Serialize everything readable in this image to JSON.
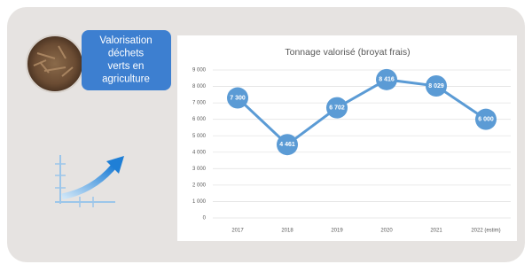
{
  "panel": {
    "label_lines": [
      "Valorisation",
      "déchets",
      "verts en",
      "agriculture"
    ]
  },
  "chart_data": {
    "type": "line",
    "title": "Tonnage valorisé (broyat frais)",
    "categories": [
      "2017",
      "2018",
      "2019",
      "2020",
      "2021",
      "2022 (estim)"
    ],
    "series": [
      {
        "color": "#5b9bd5",
        "values": [
          7300,
          4461,
          6702,
          8416,
          8029,
          6000
        ],
        "value_labels": [
          "7 300",
          "4 461",
          "6 702",
          "8 416",
          "8 029",
          "6 000"
        ]
      }
    ],
    "ylim": [
      0,
      9000
    ],
    "yticks": [
      0,
      {
        "value": 1000,
        "label": "1 000"
      },
      {
        "value": 2000,
        "label": "2 000"
      },
      {
        "value": 3000,
        "label": "3 000"
      },
      {
        "value": 4000,
        "label": "4 000"
      },
      {
        "value": 5000,
        "label": "5 000"
      },
      {
        "value": 6000,
        "label": "6 000"
      },
      {
        "value": 7000,
        "label": "7 000"
      },
      {
        "value": 8000,
        "label": "8 000"
      },
      {
        "value": 9000,
        "label": "9 000"
      }
    ],
    "grid": true
  }
}
